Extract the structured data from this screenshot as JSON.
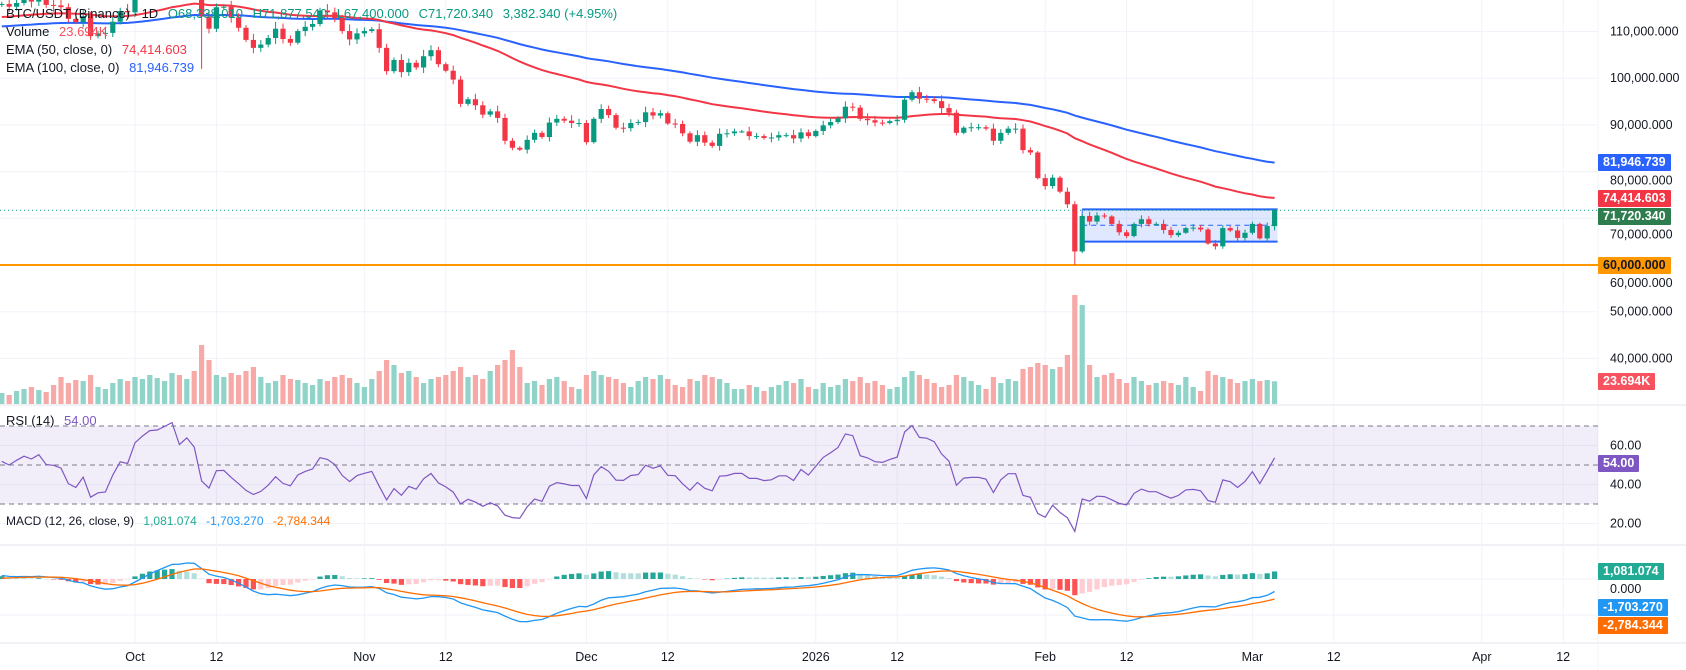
{
  "legend": {
    "symbol": "BTC/USDT (Binance) · 1D",
    "open": "O68,338.010",
    "high": "H71,877.540",
    "low": "L67,400.000",
    "close": "C71,720.340",
    "change": "3,382.340 (+4.95%)",
    "volume_name": "Volume",
    "volume_value": "23.694K",
    "ema50_name": "EMA (50, close, 0)",
    "ema50_value": "74,414.603",
    "ema100_name": "EMA (100, close, 0)",
    "ema100_value": "81,946.739",
    "rsi_name": "RSI (14)",
    "rsi_value": "54.00",
    "macd_name": "MACD (12, 26, close, 9)",
    "macd_hist": "1,081.074",
    "macd_line": "-1,703.270",
    "macd_signal": "-2,784.344"
  },
  "colors": {
    "up": "#089981",
    "down": "#f23645",
    "vol_up": "#8fd3c9",
    "vol_down": "#f7a9a7",
    "ema50": "#f23645",
    "ema100": "#2962ff",
    "support": "#ff9800",
    "range_box": "#2962ff",
    "rsi": "#7e57c2",
    "macd": "#2196f3",
    "signal": "#ff6d00",
    "hist_up_strong": "#26a69a",
    "hist_up_weak": "#b2dfdb",
    "hist_down_strong": "#ff5252",
    "hist_down_weak": "#ffcdd2"
  },
  "chart_data": {
    "type": "candlestick",
    "title": "BTC/USDT (Binance) · 1D",
    "candles": {
      "months": [
        {
          "month": "2025-09",
          "first_day": 13,
          "close_thousands": [
            115.9,
            115.3,
            116.1,
            116.8,
            116.4,
            117.1,
            115.7,
            115.6,
            115.2,
            112.7,
            112.0,
            113.3,
            109.0,
            109.6,
            109.7,
            112.1,
            114.4,
            114.1
          ],
          "volume_thousands": [
            12,
            10,
            14,
            16,
            18,
            15,
            13,
            20,
            28,
            22,
            25,
            24,
            30,
            18,
            16,
            22,
            26,
            24
          ]
        },
        {
          "month": "2025-10",
          "first_day": 1,
          "close_thousands": [
            118.6,
            120.5,
            122.2,
            122.4,
            123.5,
            124.8,
            121.4,
            123.3,
            121.7,
            113.2,
            110.6,
            115.2,
            115.3,
            113.0,
            110.8,
            108.2,
            106.5,
            107.2,
            108.6,
            110.6,
            108.4,
            107.6,
            110.1,
            111.0,
            111.6,
            114.5,
            114.1,
            112.9,
            110.1,
            108.3,
            109.6
          ],
          "volume_thousands": [
            28,
            26,
            30,
            27,
            24,
            32,
            30,
            26,
            34,
            60,
            45,
            30,
            28,
            32,
            30,
            34,
            38,
            28,
            22,
            24,
            30,
            26,
            25,
            22,
            20,
            26,
            24,
            28,
            30,
            27,
            22
          ]
        },
        {
          "month": "2025-11",
          "first_day": 1,
          "close_thousands": [
            110.1,
            110.5,
            106.5,
            101.5,
            103.9,
            101.3,
            103.3,
            102.3,
            104.7,
            106.0,
            103.0,
            101.6,
            99.7,
            94.5,
            95.5,
            94.2,
            92.2,
            92.9,
            91.5,
            86.6,
            85.1,
            84.7,
            86.8,
            88.3,
            87.4,
            90.5,
            91.3,
            90.9,
            90.4,
            90.4
          ],
          "volume_thousands": [
            18,
            26,
            34,
            45,
            40,
            32,
            34,
            28,
            22,
            26,
            28,
            30,
            34,
            38,
            28,
            30,
            26,
            34,
            40,
            45,
            55,
            38,
            22,
            24,
            20,
            26,
            28,
            24,
            18,
            16
          ]
        },
        {
          "month": "2025-12",
          "first_day": 1,
          "close_thousands": [
            86.3,
            91.3,
            93.4,
            92.1,
            89.4,
            89.3,
            90.4,
            90.6,
            92.7,
            92.0,
            92.5,
            90.3,
            90.2,
            88.2,
            86.4,
            87.8,
            86.2,
            85.5,
            88.1,
            88.2,
            88.6,
            88.6,
            87.6,
            87.6,
            87.2,
            87.3,
            87.8,
            87.8,
            87.1,
            88.4,
            87.6
          ],
          "volume_thousands": [
            30,
            34,
            30,
            28,
            26,
            22,
            18,
            24,
            28,
            26,
            30,
            26,
            20,
            18,
            26,
            24,
            30,
            28,
            26,
            22,
            16,
            16,
            20,
            18,
            14,
            18,
            20,
            24,
            22,
            26,
            18
          ]
        },
        {
          "month": "2026-01",
          "first_day": 1,
          "close_thousands": [
            88.7,
            89.9,
            90.6,
            91.4,
            93.9,
            93.7,
            91.3,
            91.0,
            90.5,
            90.4,
            90.8,
            91.1,
            95.4,
            97.0,
            95.6,
            95.5,
            95.1,
            93.6,
            92.6,
            88.3,
            89.4,
            89.5,
            89.5,
            89.2,
            86.6,
            88.3,
            89.2,
            89.2,
            84.6,
            84.1,
            78.6
          ],
          "volume_thousands": [
            16,
            22,
            18,
            20,
            26,
            24,
            28,
            22,
            24,
            20,
            16,
            18,
            28,
            34,
            30,
            26,
            22,
            18,
            20,
            30,
            28,
            24,
            20,
            16,
            28,
            22,
            26,
            24,
            36,
            38,
            42
          ]
        },
        {
          "month": "2026-02",
          "first_day": 1,
          "close_thousands": [
            76.9,
            78.7,
            75.7,
            73.0,
            62.9,
            70.5,
            69.3,
            70.6,
            70.4,
            68.8,
            67.0,
            66.2,
            68.8,
            69.8,
            68.8,
            68.8,
            67.5,
            66.4,
            66.9,
            67.9,
            68.0,
            67.6,
            64.6,
            64.0,
            67.9,
            67.4,
            65.8,
            66.9
          ],
          "volume_thousands": [
            40,
            36,
            38,
            50,
            110,
            100,
            40,
            28,
            30,
            32,
            26,
            22,
            28,
            24,
            20,
            22,
            24,
            22,
            20,
            28,
            18,
            14,
            34,
            30,
            28,
            26,
            22,
            24
          ]
        },
        {
          "month": "2026-03",
          "first_day": 1,
          "close_thousands": [
            68.8,
            65.7,
            68.338,
            71.72034
          ],
          "volume_thousands": [
            26,
            24,
            25,
            23.694
          ]
        }
      ],
      "wick_extremes": [
        {
          "date": "2025-10-10",
          "low": 102000
        },
        {
          "date": "2026-02-05",
          "low": 60000
        },
        {
          "date": "2026-03-04",
          "open": 68338.01,
          "high": 71877.54,
          "low": 67400
        }
      ]
    },
    "support_level": 60000,
    "range_box": {
      "from": "2026-02-06",
      "to": "2026-03-04",
      "top": 71900,
      "middle": 68500,
      "bottom": 65000
    },
    "last_price": 71720.34,
    "price_axis": [
      "110,000.000",
      "100,000.000",
      "90,000.000",
      "80,000.000",
      "70,000.000",
      "60,000.000",
      "50,000.000",
      "40,000.000"
    ],
    "rsi_axis": [
      "60.00",
      "40.00",
      "20.00"
    ],
    "rsi_levels": [
      70,
      50,
      30
    ],
    "time_axis": [
      {
        "label": "Oct",
        "date": "2025-10-01"
      },
      {
        "label": "12",
        "date": "2025-10-12"
      },
      {
        "label": "Nov",
        "date": "2025-11-01"
      },
      {
        "label": "12",
        "date": "2025-11-12"
      },
      {
        "label": "Dec",
        "date": "2025-12-01"
      },
      {
        "label": "12",
        "date": "2025-12-12"
      },
      {
        "label": "2026",
        "date": "2026-01-01"
      },
      {
        "label": "12",
        "date": "2026-01-12"
      },
      {
        "label": "Feb",
        "date": "2026-02-01"
      },
      {
        "label": "12",
        "date": "2026-02-12"
      },
      {
        "label": "Mar",
        "date": "2026-03-01"
      },
      {
        "label": "12",
        "date": "2026-03-12"
      },
      {
        "label": "Apr",
        "date": "2026-04-01"
      },
      {
        "label": "12",
        "date": "2026-04-12"
      }
    ],
    "value_tags": [
      {
        "text": "81,946.739",
        "panel": "price",
        "color": "#2962ff",
        "text_color": "#ffffff"
      },
      {
        "text": "74,414.603",
        "panel": "price",
        "color": "#f23645",
        "text_color": "#ffffff"
      },
      {
        "text": "71,720.340",
        "panel": "price",
        "color": "#2e7d4f",
        "text_color": "#ffffff"
      },
      {
        "text": "60,000.000",
        "panel": "price",
        "color": "#ff9800",
        "text_color": "#131722"
      },
      {
        "text": "23.694K",
        "panel": "volume",
        "color": "#f7525f",
        "text_color": "#ffffff"
      },
      {
        "text": "54.00",
        "panel": "rsi",
        "color": "#7e57c2",
        "text_color": "#ffffff"
      },
      {
        "text": "1,081.074",
        "panel": "macd",
        "color": "#22ab94",
        "text_color": "#ffffff"
      },
      {
        "text": "-1,703.270",
        "panel": "macd",
        "color": "#2196f3",
        "text_color": "#ffffff"
      },
      {
        "text": "-2,784.344",
        "panel": "macd",
        "color": "#ff6d00",
        "text_color": "#ffffff"
      }
    ]
  }
}
